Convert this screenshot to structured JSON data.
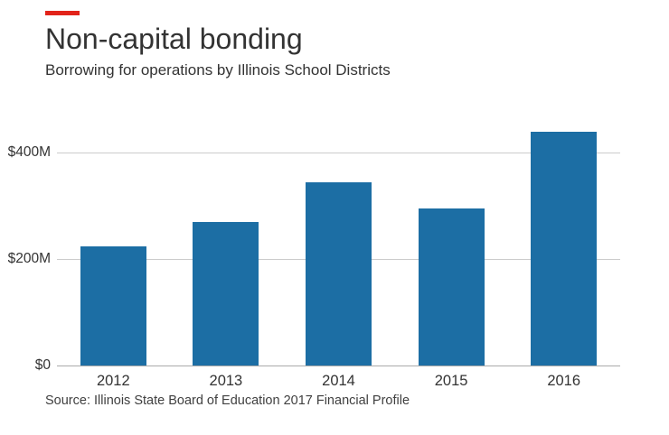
{
  "header": {
    "title": "Non-capital bonding",
    "subtitle": "Borrowing for operations by Illinois School Districts"
  },
  "source_note": "Source: Illinois State Board of Education 2017 Financial Profile",
  "colors": {
    "accent": "#e2231a",
    "bar": "#1c6ea4",
    "gridline": "#cccccc",
    "baseline": "#aaaaaa",
    "text": "#333333"
  },
  "chart_data": {
    "type": "bar",
    "title": "Non-capital bonding",
    "subtitle": "Borrowing for operations by Illinois School Districts",
    "categories": [
      "2012",
      "2013",
      "2014",
      "2015",
      "2016"
    ],
    "values": [
      225,
      270,
      345,
      295,
      440
    ],
    "units": "USD millions",
    "xlabel": "",
    "ylabel": "",
    "ylim": [
      0,
      450
    ],
    "yticks": [
      {
        "value": 0,
        "label": "$0"
      },
      {
        "value": 200,
        "label": "$200M"
      },
      {
        "value": 400,
        "label": "$400M"
      }
    ],
    "grid": true,
    "legend_position": "none",
    "source": "Source: Illinois State Board of Education 2017 Financial Profile"
  }
}
